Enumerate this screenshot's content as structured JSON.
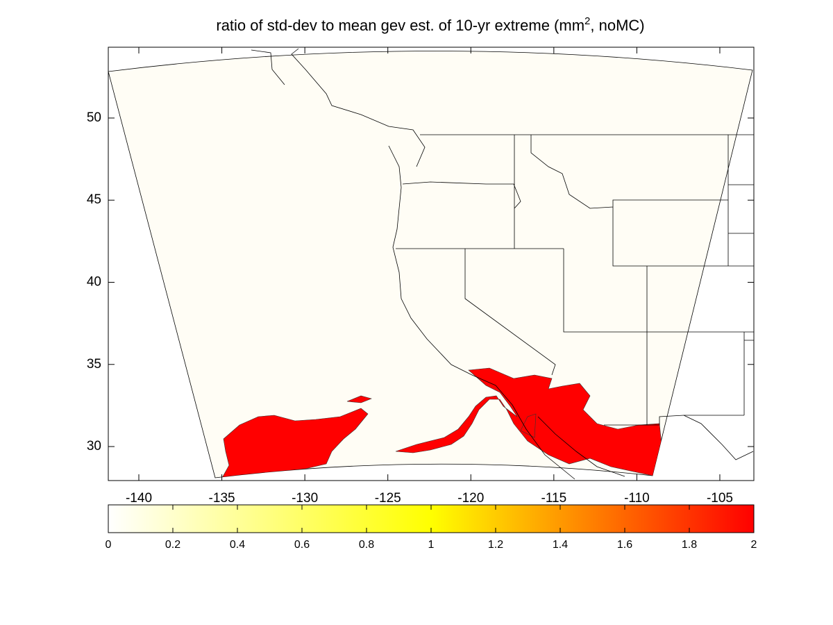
{
  "chart_data": {
    "type": "contour",
    "title": [
      "ratio of std-dev to mean gev est. of 10-yr extreme (mm",
      "2",
      ", noMC)"
    ],
    "xlim": [
      -141.84,
      -102.95
    ],
    "ylim": [
      27.93,
      54.31
    ],
    "xticks": [
      -140,
      -135,
      -130,
      -125,
      -120,
      -115,
      -110,
      -105
    ],
    "yticks": [
      30,
      35,
      40,
      45,
      50
    ],
    "colorbar": {
      "lim": [
        0,
        2
      ],
      "ticks": [
        0,
        0.2,
        0.4,
        0.6,
        0.8,
        1,
        1.2,
        1.4,
        1.6,
        1.8,
        2
      ],
      "colors": [
        "#ffffff",
        "#ffff00",
        "#ff0000"
      ]
    }
  }
}
